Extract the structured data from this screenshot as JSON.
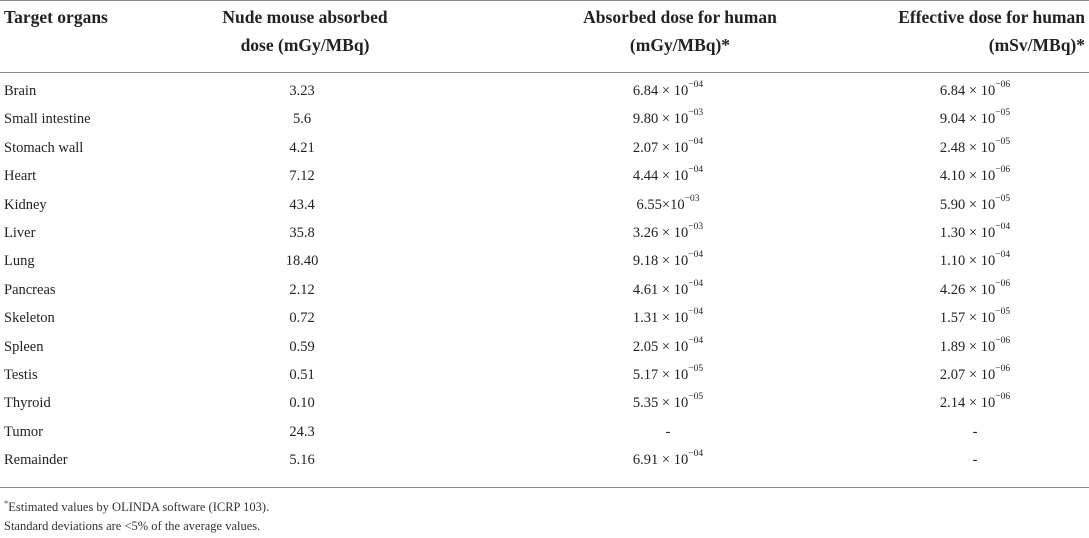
{
  "headers": {
    "organ": [
      "Target organs"
    ],
    "mouse": [
      "Nude mouse absorbed",
      "dose (mGy/MBq)"
    ],
    "human": [
      "Absorbed dose for human",
      "(mGy/MBq)*"
    ],
    "effective": [
      "Effective dose for human",
      "(mSv/MBq)*"
    ]
  },
  "rows": [
    {
      "organ": "Brain",
      "mouse": "3.23",
      "human": {
        "mantissa": "6.84 × 10",
        "exp": "−04"
      },
      "effective": {
        "mantissa": "6.84 × 10",
        "exp": "−06"
      }
    },
    {
      "organ": "Small intestine",
      "mouse": "5.6",
      "human": {
        "mantissa": "9.80 × 10",
        "exp": "−03"
      },
      "effective": {
        "mantissa": "9.04 × 10",
        "exp": "−05"
      }
    },
    {
      "organ": "Stomach wall",
      "mouse": "4.21",
      "human": {
        "mantissa": "2.07 × 10",
        "exp": "−04"
      },
      "effective": {
        "mantissa": "2.48 × 10",
        "exp": "−05"
      }
    },
    {
      "organ": "Heart",
      "mouse": "7.12",
      "human": {
        "mantissa": "4.44 × 10",
        "exp": "−04"
      },
      "effective": {
        "mantissa": "4.10 × 10",
        "exp": "−06"
      }
    },
    {
      "organ": "Kidney",
      "mouse": "43.4",
      "human": {
        "mantissa": "6.55×10",
        "exp": "−03"
      },
      "effective": {
        "mantissa": "5.90 × 10",
        "exp": "−05"
      }
    },
    {
      "organ": "Liver",
      "mouse": "35.8",
      "human": {
        "mantissa": "3.26 × 10",
        "exp": "−03"
      },
      "effective": {
        "mantissa": "1.30 × 10",
        "exp": "−04"
      }
    },
    {
      "organ": "Lung",
      "mouse": "18.40",
      "human": {
        "mantissa": "9.18 × 10",
        "exp": "−04"
      },
      "effective": {
        "mantissa": "1.10 × 10",
        "exp": "−04"
      }
    },
    {
      "organ": "Pancreas",
      "mouse": "2.12",
      "human": {
        "mantissa": "4.61 × 10",
        "exp": "−04"
      },
      "effective": {
        "mantissa": "4.26 × 10",
        "exp": "−06"
      }
    },
    {
      "organ": "Skeleton",
      "mouse": "0.72",
      "human": {
        "mantissa": "1.31 × 10",
        "exp": "−04"
      },
      "effective": {
        "mantissa": "1.57 × 10",
        "exp": "−05"
      }
    },
    {
      "organ": "Spleen",
      "mouse": "0.59",
      "human": {
        "mantissa": "2.05 × 10",
        "exp": "−04"
      },
      "effective": {
        "mantissa": "1.89 × 10",
        "exp": "−06"
      }
    },
    {
      "organ": "Testis",
      "mouse": "0.51",
      "human": {
        "mantissa": "5.17 × 10",
        "exp": "−05"
      },
      "effective": {
        "mantissa": "2.07 × 10",
        "exp": "−06"
      }
    },
    {
      "organ": "Thyroid",
      "mouse": "0.10",
      "human": {
        "mantissa": "5.35 × 10",
        "exp": "−05"
      },
      "effective": {
        "mantissa": "2.14 × 10",
        "exp": "−06"
      }
    },
    {
      "organ": "Tumor",
      "mouse": "24.3",
      "human": {
        "mantissa": "-",
        "exp": ""
      },
      "effective": {
        "mantissa": "-",
        "exp": ""
      }
    },
    {
      "organ": "Remainder",
      "mouse": "5.16",
      "human": {
        "mantissa": "6.91 × 10",
        "exp": "−04"
      },
      "effective": {
        "mantissa": "-",
        "exp": ""
      }
    }
  ],
  "footnotes": {
    "mark": "*",
    "note1": "Estimated values by OLINDA software (ICRP 103).",
    "note2": "Standard deviations are <5% of the average values."
  }
}
